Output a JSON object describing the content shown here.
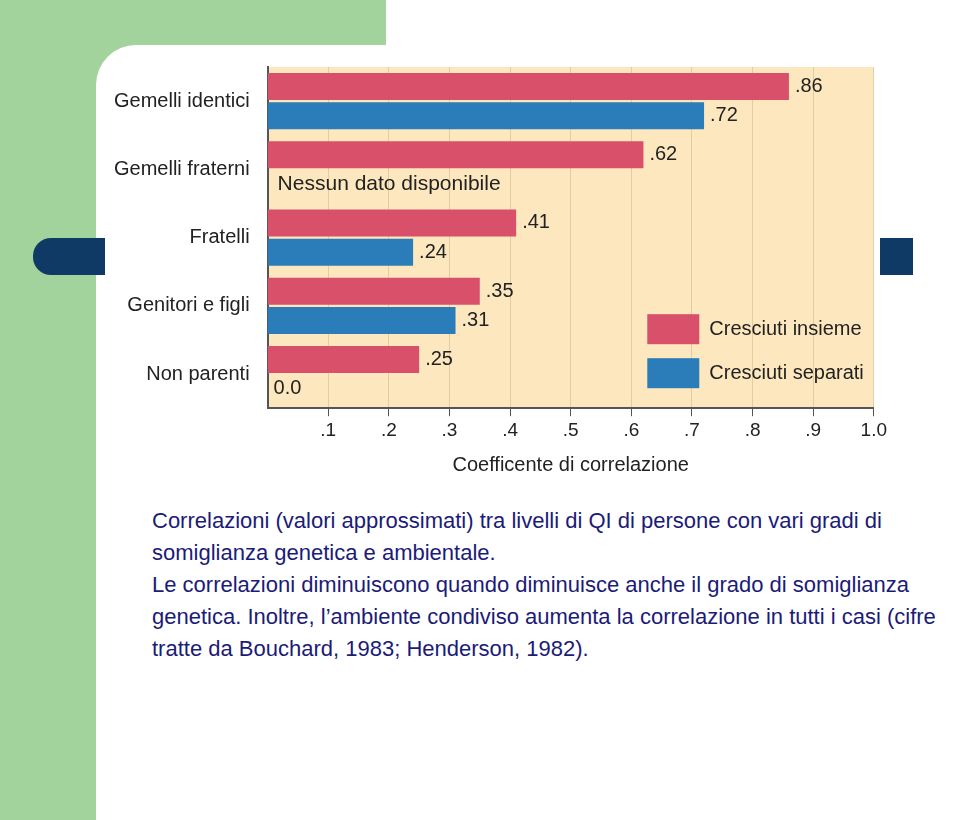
{
  "chart_data": {
    "type": "bar",
    "orientation": "horizontal",
    "categories": [
      "Gemelli identici",
      "Gemelli fraterni",
      "Fratelli",
      "Genitori e figli",
      "Non parenti"
    ],
    "series": [
      {
        "name": "Cresciuti insieme",
        "color": "#d8506a",
        "values": [
          0.86,
          0.62,
          0.41,
          0.35,
          0.25
        ],
        "value_labels": [
          ".86",
          ".62",
          ".41",
          ".35",
          ".25"
        ]
      },
      {
        "name": "Cresciuti separati",
        "color": "#2a7db8",
        "values": [
          0.72,
          null,
          0.24,
          0.31,
          0.0
        ],
        "value_labels": [
          ".72",
          null,
          ".24",
          ".31",
          "0.0"
        ]
      }
    ],
    "x_label": "Coefficente di correlazione",
    "xlim": [
      0,
      1.0
    ],
    "xticks": [
      {
        "value": 0.1,
        "label": ".1"
      },
      {
        "value": 0.2,
        "label": ".2"
      },
      {
        "value": 0.3,
        "label": ".3"
      },
      {
        "value": 0.4,
        "label": ".4"
      },
      {
        "value": 0.5,
        "label": ".5"
      },
      {
        "value": 0.6,
        "label": ".6"
      },
      {
        "value": 0.7,
        "label": ".7"
      },
      {
        "value": 0.8,
        "label": ".8"
      },
      {
        "value": 0.9,
        "label": ".9"
      },
      {
        "value": 1.0,
        "label": "1.0"
      }
    ],
    "grid": true,
    "data_labels": true,
    "legend": "lower right",
    "annotations": [
      {
        "text": "Nessun dato disponibile",
        "category": "Gemelli fraterni",
        "series": "Cresciuti separati"
      }
    ],
    "caption": [
      "Correlazioni (valori approssimati) tra livelli di QI di persone con vari gradi di somiglianza genetica e ambientale.",
      "Le correlazioni diminuiscono quando diminuisce anche il grado di somiglianza genetica. Inoltre, l’ambiente condiviso aumenta la correlazione in tutti i casi (cifre tratte da Bouchard, 1983; Henderson, 1982)."
    ]
  }
}
